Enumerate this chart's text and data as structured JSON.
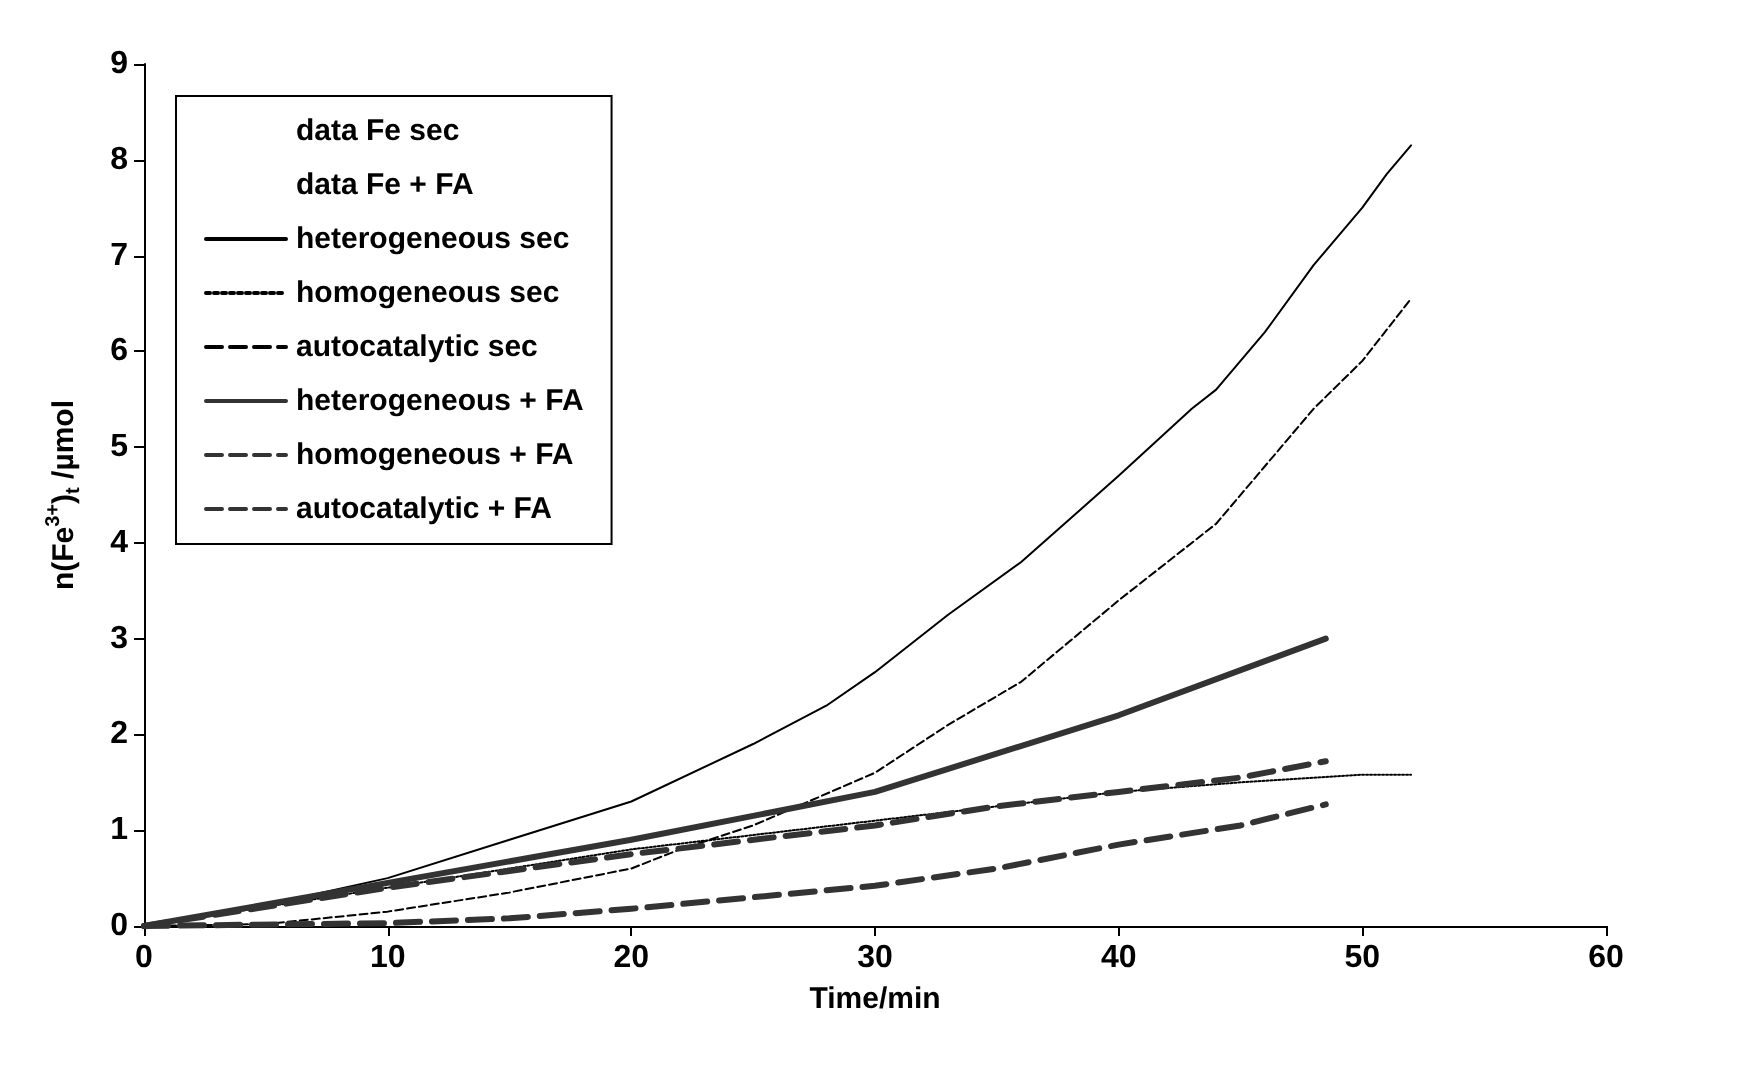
{
  "chart_data": {
    "type": "line",
    "xlabel": "Time/min",
    "ylabel": "n(Fe$^{3+}$)$_{t}$ /µmol",
    "xlim": [
      0,
      60
    ],
    "xticks": [
      0,
      10,
      20,
      30,
      40,
      50,
      60
    ],
    "ylim": [
      0,
      9
    ],
    "yticks": [
      0,
      1,
      2,
      3,
      4,
      5,
      6,
      7,
      8,
      9
    ],
    "grid": false,
    "legend": "top left",
    "marker": "none",
    "series": [
      {
        "name": "data Fe sec"
      },
      {
        "name": "data Fe + FA"
      },
      {
        "name": "heterogeneous sec",
        "color": "#000000",
        "line_style": "solid",
        "x": [
          0,
          5,
          10,
          15,
          20,
          25,
          28,
          30,
          33,
          36,
          40,
          43,
          44,
          46,
          48,
          50,
          51,
          52
        ],
        "values": [
          0,
          0.22,
          0.5,
          0.9,
          1.3,
          1.9,
          2.3,
          2.65,
          3.25,
          3.8,
          4.7,
          5.4,
          5.6,
          6.2,
          6.9,
          7.5,
          7.85,
          8.15
        ]
      },
      {
        "name": "homogeneous sec",
        "color": "#000000",
        "line_style": "dotted",
        "x": [
          0,
          5,
          10,
          15,
          20,
          25,
          30,
          35,
          40,
          45,
          50,
          52
        ],
        "values": [
          0,
          0.2,
          0.4,
          0.6,
          0.8,
          0.95,
          1.1,
          1.25,
          1.4,
          1.5,
          1.58,
          1.58
        ]
      },
      {
        "name": "autocatalytic sec",
        "color": "#000000",
        "line_style": "dashed",
        "x": [
          0,
          5,
          10,
          15,
          20,
          22,
          25,
          30,
          33,
          36,
          40,
          44,
          46,
          48,
          50,
          52
        ],
        "values": [
          0,
          0.02,
          0.15,
          0.35,
          0.6,
          0.8,
          1.05,
          1.6,
          2.1,
          2.55,
          3.4,
          4.2,
          4.8,
          5.4,
          5.9,
          6.55
        ]
      },
      {
        "name": "heterogeneous + FA",
        "color": "#333333",
        "line_style": "solid",
        "x": [
          0,
          10,
          20,
          30,
          40,
          48.5
        ],
        "values": [
          0,
          0.45,
          0.9,
          1.4,
          2.2,
          3.0
        ]
      },
      {
        "name": "homogeneous + FA",
        "color": "#333333",
        "line_style": "dashed",
        "x": [
          0,
          10,
          20,
          30,
          35,
          40,
          45,
          48.5
        ],
        "values": [
          0,
          0.4,
          0.75,
          1.05,
          1.25,
          1.4,
          1.55,
          1.72
        ]
      },
      {
        "name": "autocatalytic + FA",
        "color": "#333333",
        "line_style": "dashed",
        "x": [
          0,
          10,
          15,
          20,
          25,
          30,
          35,
          40,
          45,
          48.5
        ],
        "values": [
          0,
          0.03,
          0.08,
          0.18,
          0.3,
          0.42,
          0.6,
          0.85,
          1.05,
          1.27
        ]
      }
    ]
  }
}
